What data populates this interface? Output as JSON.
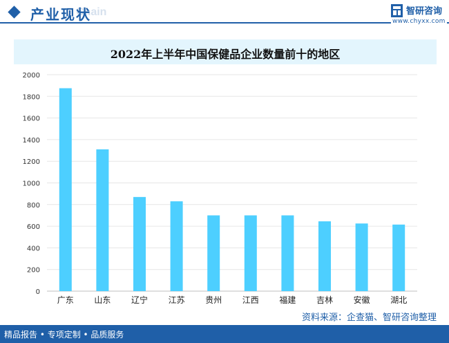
{
  "header": {
    "title": "产业现状",
    "watermark": "Chain"
  },
  "brand": {
    "name": "智研咨询",
    "url": "www.chyxx.com"
  },
  "chart_data": {
    "type": "bar",
    "title": "2022年上半年中国保健品企业数量前十的地区",
    "categories": [
      "广东",
      "山东",
      "辽宁",
      "江苏",
      "贵州",
      "江西",
      "福建",
      "吉林",
      "安徽",
      "湖北"
    ],
    "values": [
      1875,
      1310,
      870,
      830,
      700,
      700,
      700,
      645,
      625,
      615
    ],
    "ylim": [
      0,
      2000
    ],
    "yticks": [
      0,
      200,
      400,
      600,
      800,
      1000,
      1200,
      1400,
      1600,
      1800,
      2000
    ],
    "xlabel": "",
    "ylabel": "",
    "grid": true,
    "bar_color": "#4dcfff"
  },
  "source": "资料来源：企查猫、智研咨询整理",
  "footer": {
    "left": "精品报告 • 专项定制 • 品质服务"
  }
}
